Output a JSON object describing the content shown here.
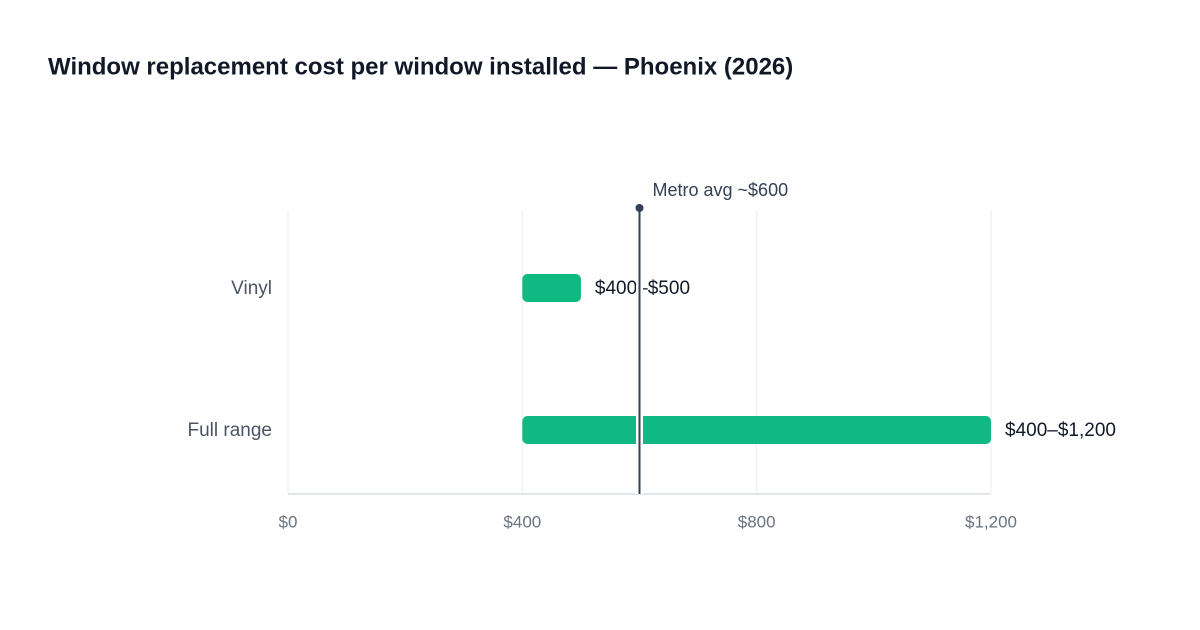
{
  "chart_data": {
    "type": "range-bar",
    "title": "Window replacement cost per window installed — Phoenix (2026)",
    "categories": [
      "Vinyl",
      "Full range"
    ],
    "low": [
      400,
      400
    ],
    "high": [
      500,
      1200
    ],
    "value_labels": [
      "$400–$500",
      "$400–$1,200"
    ],
    "color": "#10b981",
    "reference": {
      "value": 600,
      "label": "Metro avg ~$600"
    },
    "xlim": [
      0,
      1200
    ],
    "xticks": [
      {
        "value": 0,
        "label": "$0"
      },
      {
        "value": 400,
        "label": "$400"
      },
      {
        "value": 800,
        "label": "$800"
      },
      {
        "value": 1200,
        "label": "$1,200"
      }
    ],
    "grid": true
  }
}
